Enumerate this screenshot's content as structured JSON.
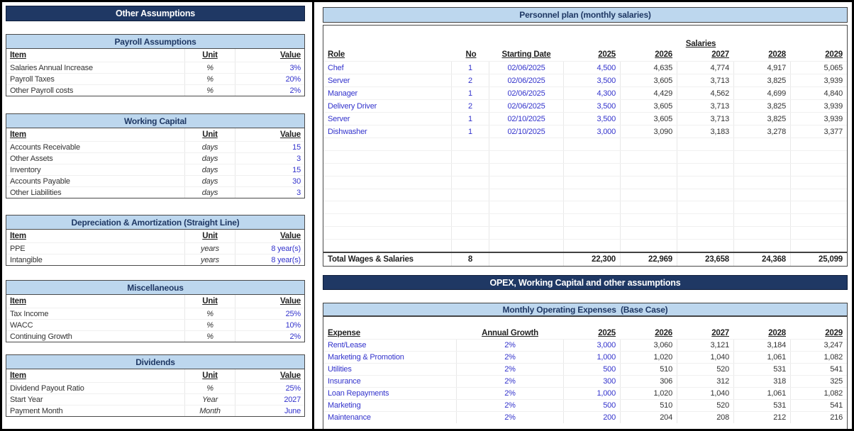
{
  "colors": {
    "banner_bg": "#1F3864",
    "banner_text": "#FFFFFF",
    "section_header_bg": "#BDD7EE",
    "section_header_text": "#1F3864",
    "input_text_blue": "#3333CC",
    "body_text": "#333333"
  },
  "left_panel": {
    "title": "Other Assumptions",
    "sections": [
      {
        "title": "Payroll Assumptions",
        "columns": [
          "Item",
          "Unit",
          "Value"
        ],
        "rows": [
          [
            "Salaries Annual Increase",
            "%",
            "3%"
          ],
          [
            "Payroll Taxes",
            "%",
            "20%"
          ],
          [
            "Other Payroll costs",
            "%",
            "2%"
          ]
        ]
      },
      {
        "title": "Working Capital",
        "columns": [
          "Item",
          "Unit",
          "Value"
        ],
        "rows": [
          [
            "Accounts Receivable",
            "days",
            "15"
          ],
          [
            "Other Assets",
            "days",
            "3"
          ],
          [
            "Inventory",
            "days",
            "15"
          ],
          [
            "Accounts Payable",
            "days",
            "30"
          ],
          [
            "Other Liabilities",
            "days",
            "3"
          ]
        ]
      },
      {
        "title": "Depreciation & Amortization (Straight Line)",
        "columns": [
          "Item",
          "Unit",
          "Value"
        ],
        "rows": [
          [
            "PPE",
            "years",
            "8 year(s)"
          ],
          [
            "Intangible",
            "years",
            "8 year(s)"
          ]
        ]
      },
      {
        "title": "Miscellaneous",
        "columns": [
          "Item",
          "Unit",
          "Value"
        ],
        "rows": [
          [
            "Tax Income",
            "%",
            "25%"
          ],
          [
            "WACC",
            "%",
            "10%"
          ],
          [
            "Continuing Growth",
            "%",
            "2%"
          ]
        ]
      },
      {
        "title": "Dividends",
        "columns": [
          "Item",
          "Unit",
          "Value"
        ],
        "rows": [
          [
            "Dividend Payout Ratio",
            "%",
            "25%"
          ],
          [
            "Start Year",
            "Year",
            "2027"
          ],
          [
            "Payment Month",
            "Month",
            "June"
          ]
        ]
      }
    ]
  },
  "personnel": {
    "title": "Personnel plan (monthly salaries)",
    "salaries_label": "Salaries",
    "columns": [
      "Role",
      "No",
      "Starting Date",
      "2025",
      "2026",
      "2027",
      "2028",
      "2029"
    ],
    "rows": [
      {
        "role": "Chef",
        "no": "1",
        "date": "02/06/2025",
        "years": [
          "4,500",
          "4,635",
          "4,774",
          "4,917",
          "5,065"
        ]
      },
      {
        "role": "Server",
        "no": "2",
        "date": "02/06/2025",
        "years": [
          "3,500",
          "3,605",
          "3,713",
          "3,825",
          "3,939"
        ]
      },
      {
        "role": "Manager",
        "no": "1",
        "date": "02/06/2025",
        "years": [
          "4,300",
          "4,429",
          "4,562",
          "4,699",
          "4,840"
        ]
      },
      {
        "role": "Delivery Driver",
        "no": "2",
        "date": "02/06/2025",
        "years": [
          "3,500",
          "3,605",
          "3,713",
          "3,825",
          "3,939"
        ]
      },
      {
        "role": "Server",
        "no": "1",
        "date": "02/10/2025",
        "years": [
          "3,500",
          "3,605",
          "3,713",
          "3,825",
          "3,939"
        ]
      },
      {
        "role": "Dishwasher",
        "no": "1",
        "date": "02/10/2025",
        "years": [
          "3,000",
          "3,090",
          "3,183",
          "3,278",
          "3,377"
        ]
      }
    ],
    "total": {
      "label": "Total Wages & Salaries",
      "no": "8",
      "values": [
        "22,300",
        "22,969",
        "23,658",
        "24,368",
        "25,099"
      ]
    }
  },
  "opex_banner": "OPEX, Working Capital and other assumptions",
  "opex": {
    "title": "Monthly Operating Expenses  (Base Case)",
    "columns": [
      "Expense",
      "Annual Growth",
      "2025",
      "2026",
      "2027",
      "2028",
      "2029"
    ],
    "rows": [
      {
        "expense": "Rent/Lease",
        "growth": "2%",
        "years": [
          "3,000",
          "3,060",
          "3,121",
          "3,184",
          "3,247"
        ]
      },
      {
        "expense": "Marketing & Promotion",
        "growth": "2%",
        "years": [
          "1,000",
          "1,020",
          "1,040",
          "1,061",
          "1,082"
        ]
      },
      {
        "expense": "Utilities",
        "growth": "2%",
        "years": [
          "500",
          "510",
          "520",
          "531",
          "541"
        ]
      },
      {
        "expense": "Insurance",
        "growth": "2%",
        "years": [
          "300",
          "306",
          "312",
          "318",
          "325"
        ]
      },
      {
        "expense": "Loan Repayments",
        "growth": "2%",
        "years": [
          "1,000",
          "1,020",
          "1,040",
          "1,061",
          "1,082"
        ]
      },
      {
        "expense": "Marketing",
        "growth": "2%",
        "years": [
          "500",
          "510",
          "520",
          "531",
          "541"
        ]
      },
      {
        "expense": "Maintenance",
        "growth": "2%",
        "years": [
          "200",
          "204",
          "208",
          "212",
          "216"
        ]
      }
    ]
  }
}
